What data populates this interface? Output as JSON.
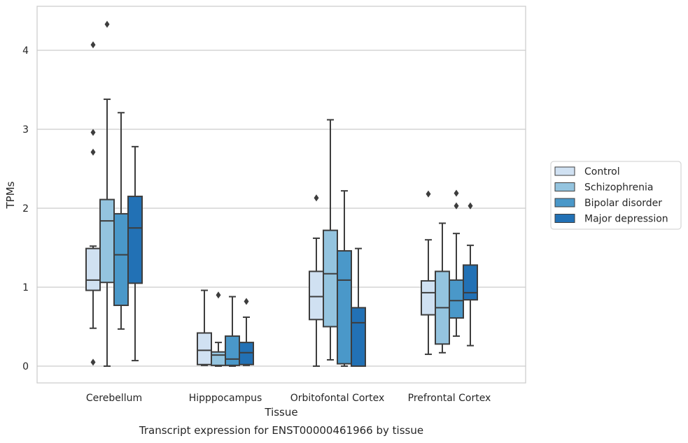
{
  "chart_data": {
    "type": "box",
    "title": "Transcript expression for ENST00000461966 by tissue",
    "xlabel": "Tissue",
    "ylabel": "TPMs",
    "ylim": [
      -0.2,
      4.55
    ],
    "yticks": [
      0,
      1,
      2,
      3,
      4
    ],
    "grid": "horizontal",
    "legend_position": "right",
    "categories": [
      "Cerebellum",
      "Hipppocampus",
      "Orbitofontal Cortex",
      "Prefrontal Cortex"
    ],
    "series": [
      {
        "name": "Control",
        "color": "#d0e1f2",
        "boxes": [
          {
            "whisker_low": 0.48,
            "q1": 0.96,
            "median": 1.09,
            "q3": 1.49,
            "whisker_high": 1.52,
            "outliers": [
              4.07,
              2.96,
              2.71,
              0.05
            ]
          },
          {
            "whisker_low": 0.01,
            "q1": 0.02,
            "median": 0.2,
            "q3": 0.42,
            "whisker_high": 0.96,
            "outliers": []
          },
          {
            "whisker_low": 0.0,
            "q1": 0.59,
            "median": 0.88,
            "q3": 1.2,
            "whisker_high": 1.62,
            "outliers": [
              2.13
            ]
          },
          {
            "whisker_low": 0.15,
            "q1": 0.65,
            "median": 0.93,
            "q3": 1.08,
            "whisker_high": 1.6,
            "outliers": [
              2.18
            ]
          }
        ]
      },
      {
        "name": "Schizophrenia",
        "color": "#94c4df",
        "boxes": [
          {
            "whisker_low": 0.0,
            "q1": 1.06,
            "median": 1.84,
            "q3": 2.11,
            "whisker_high": 3.38,
            "outliers": [
              4.33
            ]
          },
          {
            "whisker_low": 0.0,
            "q1": 0.01,
            "median": 0.14,
            "q3": 0.18,
            "whisker_high": 0.3,
            "outliers": [
              0.9
            ]
          },
          {
            "whisker_low": 0.08,
            "q1": 0.5,
            "median": 1.17,
            "q3": 1.72,
            "whisker_high": 3.12,
            "outliers": []
          },
          {
            "whisker_low": 0.17,
            "q1": 0.28,
            "median": 0.74,
            "q3": 1.2,
            "whisker_high": 1.81,
            "outliers": []
          }
        ]
      },
      {
        "name": "Bipolar disorder",
        "color": "#4a98c9",
        "boxes": [
          {
            "whisker_low": 0.47,
            "q1": 0.77,
            "median": 1.41,
            "q3": 1.93,
            "whisker_high": 3.21,
            "outliers": []
          },
          {
            "whisker_low": 0.0,
            "q1": 0.01,
            "median": 0.09,
            "q3": 0.38,
            "whisker_high": 0.88,
            "outliers": []
          },
          {
            "whisker_low": 0.0,
            "q1": 0.03,
            "median": 1.09,
            "q3": 1.46,
            "whisker_high": 2.22,
            "outliers": []
          },
          {
            "whisker_low": 0.38,
            "q1": 0.61,
            "median": 0.83,
            "q3": 1.09,
            "whisker_high": 1.68,
            "outliers": [
              2.19,
              2.03
            ]
          }
        ]
      },
      {
        "name": "Major depression",
        "color": "#2271b5",
        "boxes": [
          {
            "whisker_low": 0.07,
            "q1": 1.05,
            "median": 1.75,
            "q3": 2.15,
            "whisker_high": 2.78,
            "outliers": []
          },
          {
            "whisker_low": 0.01,
            "q1": 0.02,
            "median": 0.17,
            "q3": 0.3,
            "whisker_high": 0.62,
            "outliers": [
              0.82
            ]
          },
          {
            "whisker_low": 0.0,
            "q1": 0.0,
            "median": 0.55,
            "q3": 0.74,
            "whisker_high": 1.49,
            "outliers": []
          },
          {
            "whisker_low": 0.26,
            "q1": 0.84,
            "median": 0.93,
            "q3": 1.28,
            "whisker_high": 1.53,
            "outliers": [
              2.03
            ]
          }
        ]
      }
    ]
  }
}
